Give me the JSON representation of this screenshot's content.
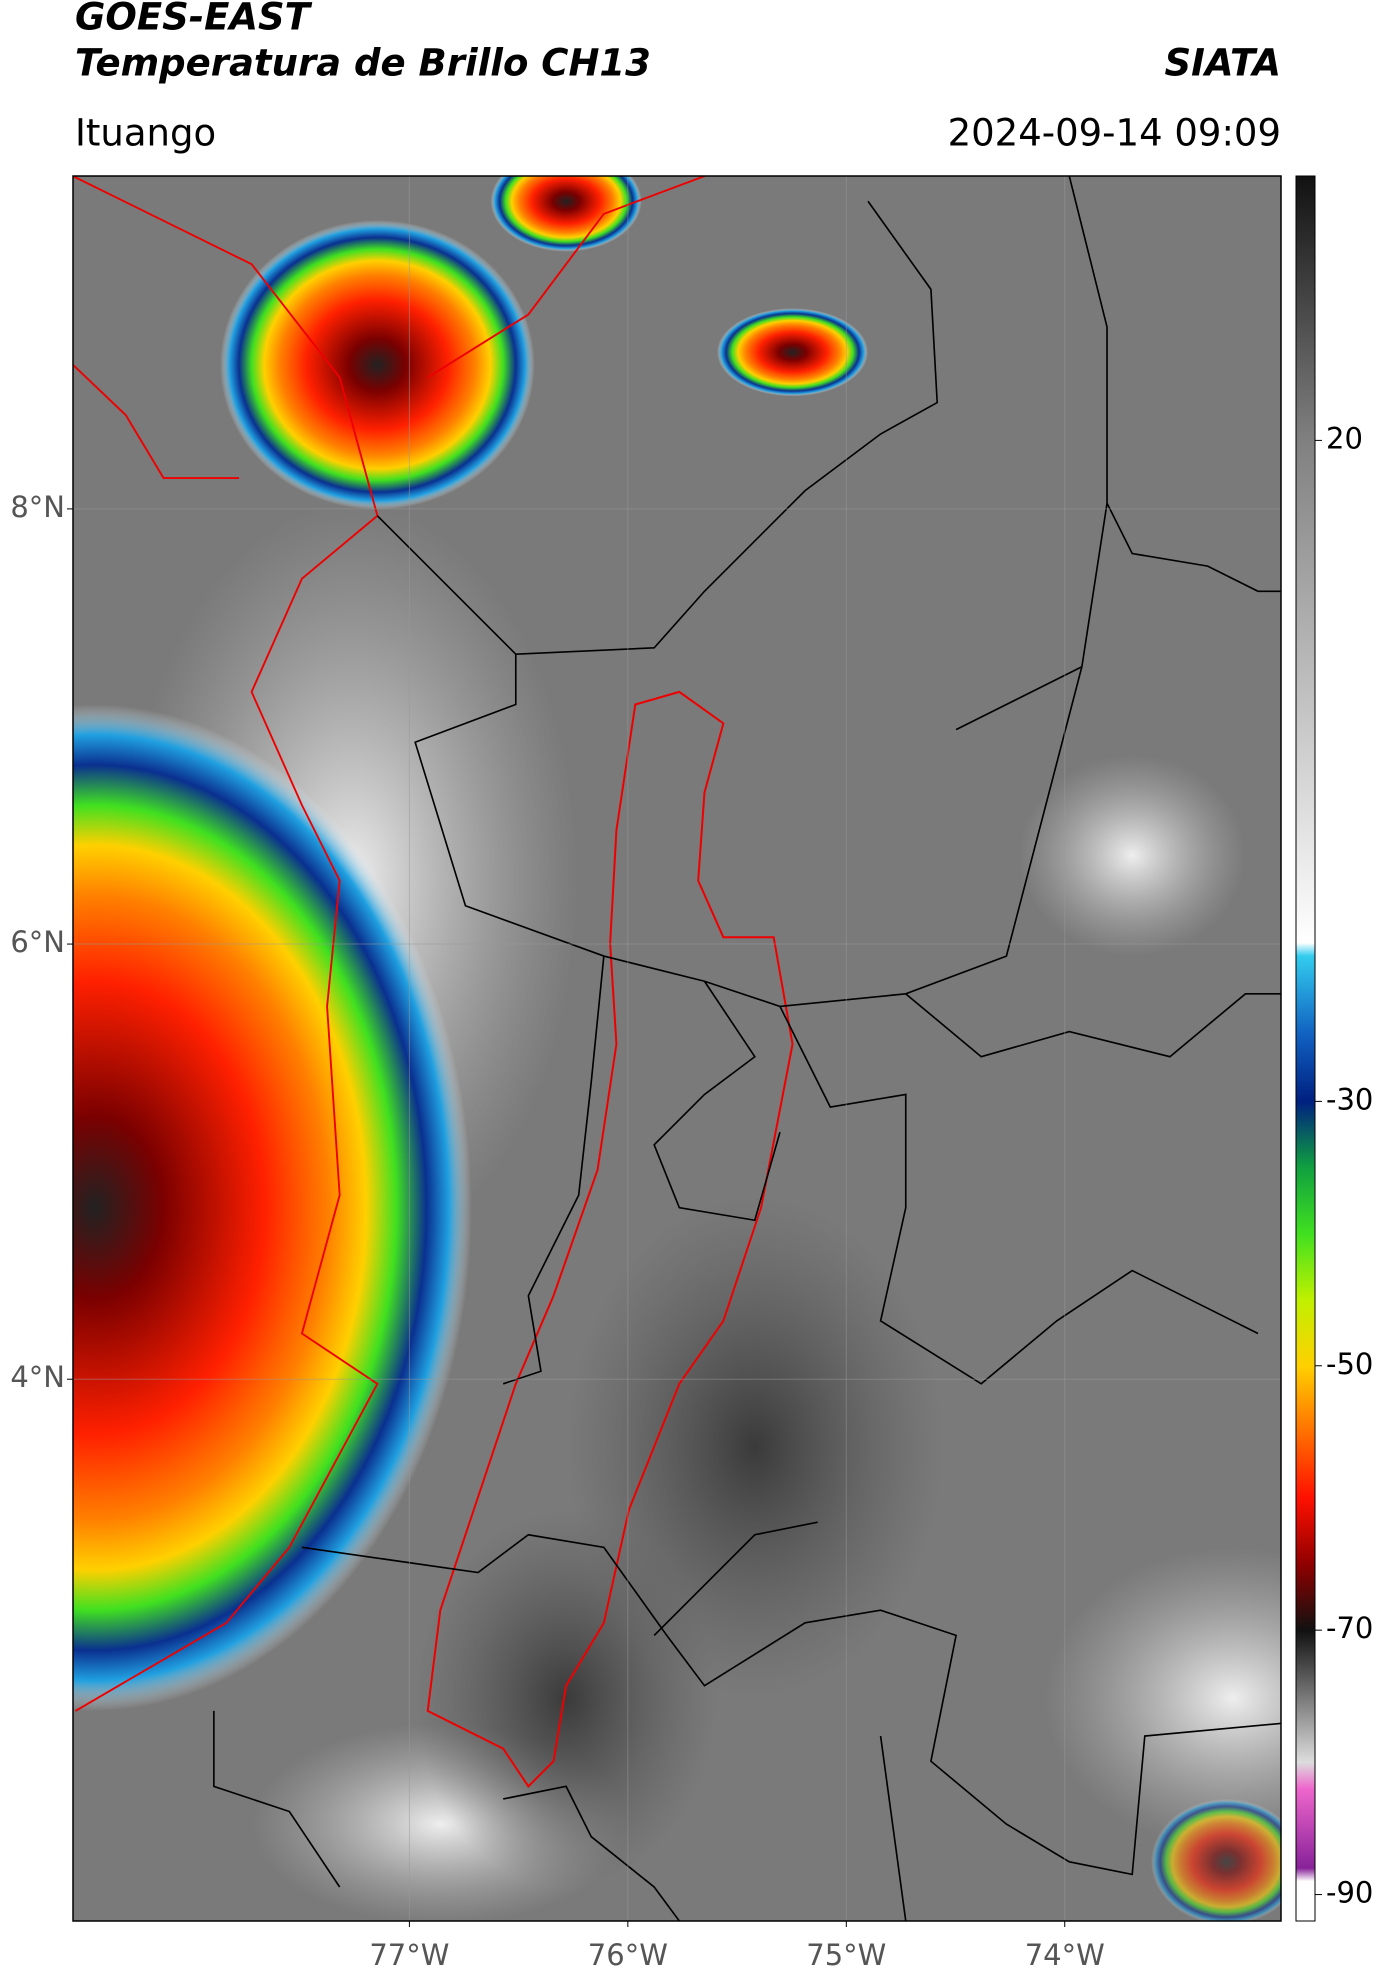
{
  "header": {
    "title_line1": "GOES-EAST",
    "title_line2": "Temperatura de Brillo CH13",
    "source": "SIATA",
    "location": "Ituango",
    "datetime": "2024-09-14 09:09"
  },
  "map": {
    "lonlim": [
      -78.54,
      -73.01
    ],
    "latlim": [
      1.51,
      9.53
    ],
    "lon_ticks": [
      {
        "value": -77,
        "label": "77°W"
      },
      {
        "value": -76,
        "label": "76°W"
      },
      {
        "value": -75,
        "label": "75°W"
      },
      {
        "value": -74,
        "label": "74°W"
      }
    ],
    "lat_ticks": [
      {
        "value": 8,
        "label": "8°N"
      },
      {
        "value": 6,
        "label": "6°N"
      },
      {
        "value": 4,
        "label": "4°N"
      }
    ],
    "grid": true
  },
  "colorbar": {
    "lim": [
      -92,
      40
    ],
    "ticks": [
      20,
      -30,
      -50,
      -70,
      -90
    ],
    "colormap": [
      [
        40,
        "#111111"
      ],
      [
        20,
        "#808080"
      ],
      [
        -18,
        "#ffffff"
      ],
      [
        -19,
        "#33ccee"
      ],
      [
        -25,
        "#1060c0"
      ],
      [
        -30,
        "#002080"
      ],
      [
        -35,
        "#10a040"
      ],
      [
        -40,
        "#40e020"
      ],
      [
        -45,
        "#c0f000"
      ],
      [
        -50,
        "#ffd000"
      ],
      [
        -55,
        "#ff7000"
      ],
      [
        -60,
        "#ff1000"
      ],
      [
        -65,
        "#900000"
      ],
      [
        -70,
        "#111111"
      ],
      [
        -75,
        "#777777"
      ],
      [
        -80,
        "#dddddd"
      ],
      [
        -82,
        "#ee66cc"
      ],
      [
        -88,
        "#882299"
      ],
      [
        -89,
        "#ffffff"
      ],
      [
        -92,
        "#ffffff"
      ]
    ]
  }
}
